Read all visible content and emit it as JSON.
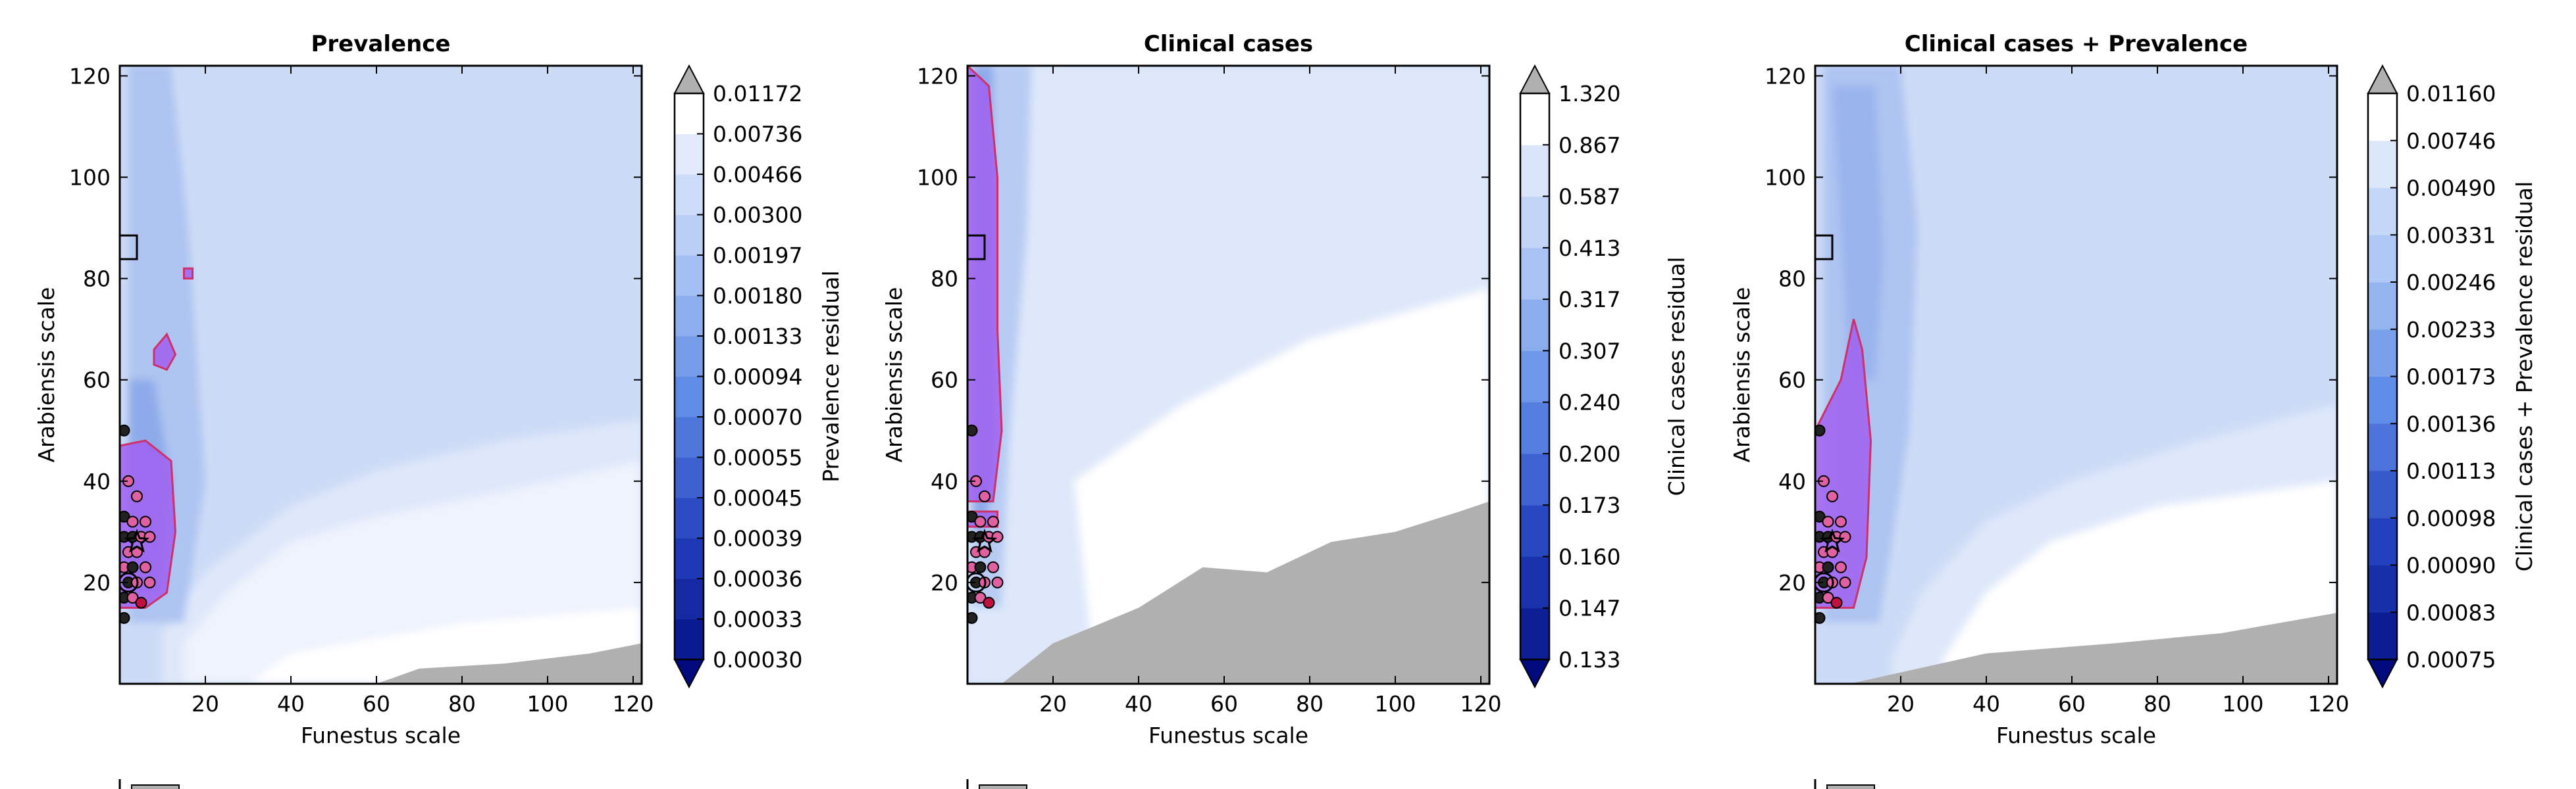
{
  "chart_data": [
    {
      "type": "heatmap",
      "title": "Prevalence",
      "xlabel": "Funestus scale",
      "ylabel": "Arabiensis scale",
      "xlim": [
        0,
        122
      ],
      "ylim": [
        0,
        122
      ],
      "xticks": [
        "20",
        "40",
        "60",
        "80",
        "100",
        "120"
      ],
      "yticks": [
        "20",
        "40",
        "60",
        "80",
        "100",
        "120"
      ],
      "colorbar_label": "Prevalence residual",
      "colorbar_levels": [
        "0.00030",
        "0.00033",
        "0.00036",
        "0.00039",
        "0.00045",
        "0.00055",
        "0.00070",
        "0.00094",
        "0.00133",
        "0.00180",
        "0.00197",
        "0.00300",
        "0.00466",
        "0.00736",
        "0.01172"
      ],
      "colorbar_extend": "both",
      "highlight_color": "#d0306a",
      "best_region_color": "#a060f0"
    },
    {
      "type": "heatmap",
      "title": "Clinical cases",
      "xlabel": "Funestus scale",
      "ylabel": "Arabiensis scale",
      "xlim": [
        0,
        122
      ],
      "ylim": [
        0,
        122
      ],
      "xticks": [
        "20",
        "40",
        "60",
        "80",
        "100",
        "120"
      ],
      "yticks": [
        "20",
        "40",
        "60",
        "80",
        "100",
        "120"
      ],
      "colorbar_label": "Clinical cases residual",
      "colorbar_levels": [
        "0.133",
        "0.147",
        "0.160",
        "0.173",
        "0.200",
        "0.240",
        "0.307",
        "0.317",
        "0.413",
        "0.587",
        "0.867",
        "1.320"
      ],
      "colorbar_extend": "both",
      "highlight_color": "#d0306a",
      "best_region_color": "#a060f0"
    },
    {
      "type": "heatmap",
      "title": "Clinical cases + Prevalence",
      "xlabel": "Funestus scale",
      "ylabel": "Arabiensis scale",
      "xlim": [
        0,
        122
      ],
      "ylim": [
        0,
        122
      ],
      "xticks": [
        "20",
        "40",
        "60",
        "80",
        "100",
        "120"
      ],
      "yticks": [
        "20",
        "40",
        "60",
        "80",
        "100",
        "120"
      ],
      "colorbar_label": "Clinical cases + Prevalence residual",
      "colorbar_levels": [
        "0.00075",
        "0.00083",
        "0.00090",
        "0.00098",
        "0.00113",
        "0.00136",
        "0.00173",
        "0.00233",
        "0.00246",
        "0.00331",
        "0.00490",
        "0.00746",
        "0.01160"
      ],
      "colorbar_extend": "both",
      "highlight_color": "#d0306a",
      "best_region_color": "#a060f0"
    }
  ]
}
